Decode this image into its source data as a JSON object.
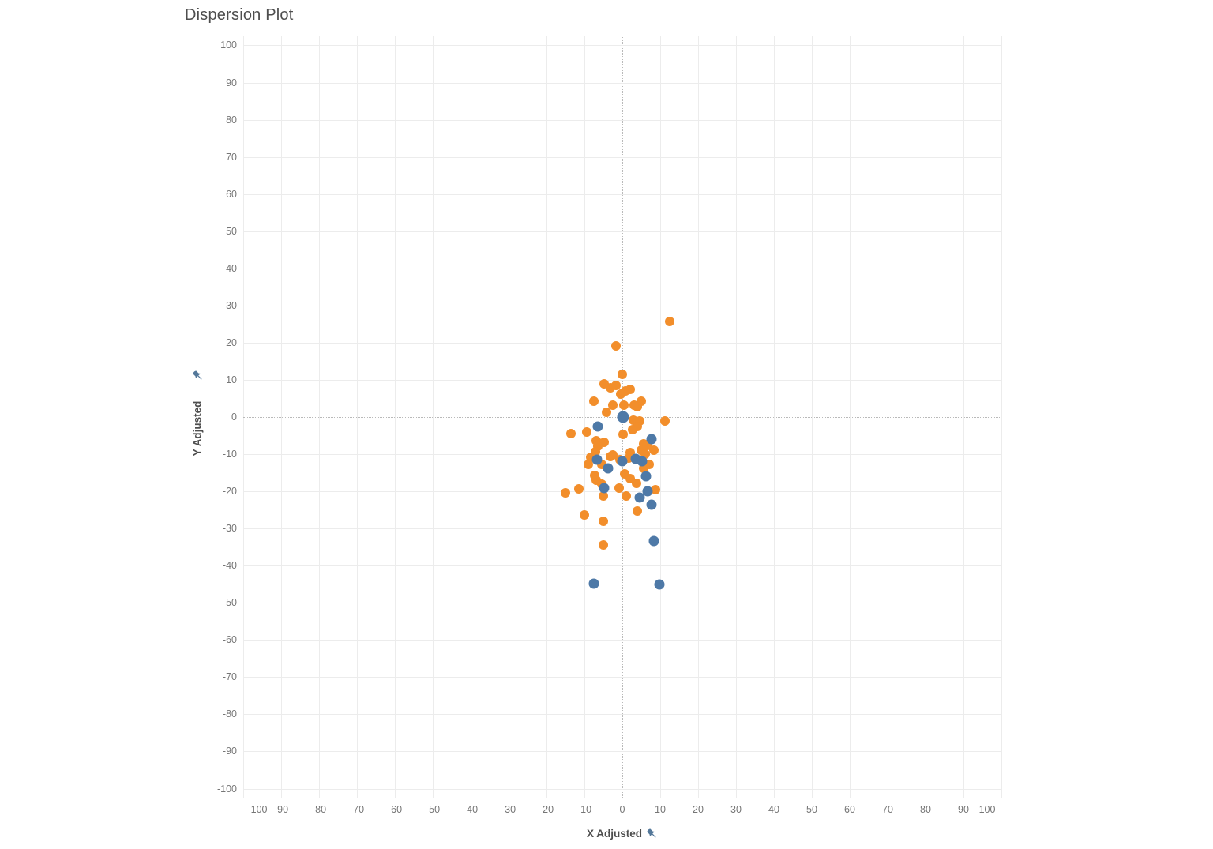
{
  "title": "Dispersion Plot",
  "axes": {
    "x_title": "X Adjusted",
    "y_title": "Y Adjusted",
    "pin_icon_color": "#54789a",
    "tick_color": "#767676",
    "grid_color": "#ececec",
    "zero_line_color": "#b9b9b9"
  },
  "chart_data": {
    "type": "scatter",
    "title": "Dispersion Plot",
    "xlabel": "X Adjusted",
    "ylabel": "Y Adjusted",
    "xlim": [
      -100,
      100
    ],
    "ylim": [
      -100,
      100
    ],
    "tick_step": 10,
    "grid": true,
    "legend": "none",
    "x_ticks": [
      -100,
      -90,
      -80,
      -70,
      -60,
      -50,
      -40,
      -30,
      -20,
      -10,
      0,
      10,
      20,
      30,
      40,
      50,
      60,
      70,
      80,
      90,
      100
    ],
    "y_ticks": [
      100,
      90,
      80,
      70,
      60,
      50,
      40,
      30,
      20,
      10,
      0,
      -10,
      -20,
      -30,
      -40,
      -50,
      -60,
      -70,
      -80,
      -90,
      -100
    ],
    "series": [
      {
        "name": "orange",
        "color": "#f28e2b",
        "marker_size": 12,
        "points": [
          [
            12.4,
            25.8
          ],
          [
            -1.6,
            19.2
          ],
          [
            0.1,
            11.4
          ],
          [
            -4.8,
            8.9
          ],
          [
            -3.2,
            7.9
          ],
          [
            -1.7,
            8.4
          ],
          [
            2.0,
            7.5
          ],
          [
            0.8,
            7.0
          ],
          [
            -0.4,
            6.2
          ],
          [
            -7.6,
            4.2
          ],
          [
            4.9,
            4.2
          ],
          [
            3.9,
            2.8
          ],
          [
            -2.4,
            3.1
          ],
          [
            0.4,
            3.1
          ],
          [
            3.2,
            3.1
          ],
          [
            -4.1,
            1.3
          ],
          [
            2.9,
            -0.8
          ],
          [
            4.6,
            -1.1
          ],
          [
            11.2,
            -1.1
          ],
          [
            3.9,
            -2.6
          ],
          [
            2.7,
            -3.4
          ],
          [
            -13.6,
            -4.4
          ],
          [
            -9.4,
            -4.1
          ],
          [
            0.2,
            -4.7
          ],
          [
            -6.9,
            -6.4
          ],
          [
            -4.8,
            -6.8
          ],
          [
            -6.4,
            -7.9
          ],
          [
            5.6,
            -7.2
          ],
          [
            6.7,
            -7.6
          ],
          [
            -7.1,
            -9.4
          ],
          [
            2.1,
            -9.6
          ],
          [
            4.9,
            -8.9
          ],
          [
            8.4,
            -8.9
          ],
          [
            -8.3,
            -10.9
          ],
          [
            -3.1,
            -10.7
          ],
          [
            -2.4,
            -10.2
          ],
          [
            1.6,
            -11.1
          ],
          [
            6.0,
            -10.0
          ],
          [
            -0.6,
            -11.4
          ],
          [
            -9.0,
            -12.8
          ],
          [
            -5.5,
            -12.8
          ],
          [
            7.0,
            -12.8
          ],
          [
            5.6,
            -13.9
          ],
          [
            -7.2,
            -15.7
          ],
          [
            0.6,
            -15.4
          ],
          [
            2.1,
            -16.6
          ],
          [
            -6.9,
            -17.1
          ],
          [
            3.8,
            -17.9
          ],
          [
            -5.5,
            -18.1
          ],
          [
            -0.8,
            -19.2
          ],
          [
            -11.5,
            -19.4
          ],
          [
            -15.0,
            -20.5
          ],
          [
            8.7,
            -19.6
          ],
          [
            1.1,
            -21.3
          ],
          [
            -5.1,
            -21.3
          ],
          [
            3.9,
            -25.2
          ],
          [
            -10.0,
            -26.3
          ],
          [
            -4.9,
            -28.1
          ],
          [
            -5.1,
            -34.5
          ]
        ]
      },
      {
        "name": "blue",
        "color": "#4e79a7",
        "marker_size": 13,
        "points": [
          [
            0.2,
            0.0,
            15
          ],
          [
            -6.4,
            -2.6
          ],
          [
            7.7,
            -6.0
          ],
          [
            -6.6,
            -11.5
          ],
          [
            -0.1,
            -11.9
          ],
          [
            3.5,
            -11.2
          ],
          [
            5.3,
            -11.8
          ],
          [
            -3.8,
            -13.8
          ],
          [
            6.3,
            -15.9
          ],
          [
            -4.8,
            -19.2
          ],
          [
            6.7,
            -19.9
          ],
          [
            4.6,
            -21.7
          ],
          [
            7.7,
            -23.5
          ],
          [
            8.4,
            -33.4
          ],
          [
            -7.6,
            -44.8
          ],
          [
            9.8,
            -45.0
          ]
        ]
      }
    ]
  }
}
